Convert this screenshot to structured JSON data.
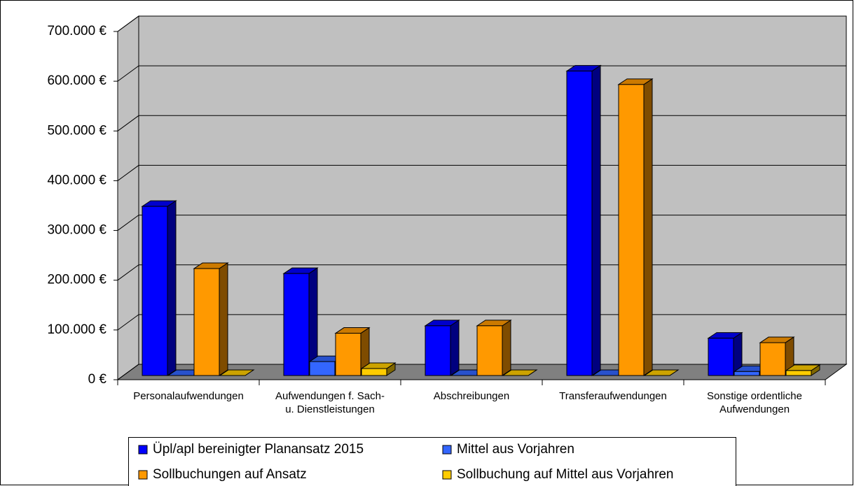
{
  "chart_data": {
    "type": "bar3d",
    "categories": [
      "Personalaufwendungen",
      "Aufwendungen f. Sach-\nu. Dienstleistungen",
      "Abschreibungen",
      "Transferaufwendungen",
      "Sonstige ordentliche\nAufwendungen"
    ],
    "series": [
      {
        "name": "Üpl/apl bereinigter Planansatz 2015",
        "color": "#0000ff",
        "values": [
          340000,
          205000,
          100000,
          612000,
          75000
        ]
      },
      {
        "name": "Mittel aus Vorjahren",
        "color": "#3366ff",
        "values": [
          0,
          28000,
          0,
          0,
          8000
        ]
      },
      {
        "name": "Sollbuchungen auf Ansatz",
        "color": "#ff9900",
        "values": [
          215000,
          85000,
          100000,
          585000,
          66000
        ]
      },
      {
        "name": "Sollbuchung auf Mittel aus Vorjahren",
        "color": "#ffcc00",
        "values": [
          0,
          14000,
          0,
          0,
          10000
        ]
      }
    ],
    "ylim": [
      0,
      700000
    ],
    "yticks": [
      {
        "value": 0,
        "label": "0 €"
      },
      {
        "value": 100000,
        "label": "100.000 €"
      },
      {
        "value": 200000,
        "label": "200.000 €"
      },
      {
        "value": 300000,
        "label": "300.000 €"
      },
      {
        "value": 400000,
        "label": "400.000 €"
      },
      {
        "value": 500000,
        "label": "500.000 €"
      },
      {
        "value": 600000,
        "label": "600.000 €"
      },
      {
        "value": 700000,
        "label": "700.000 €"
      }
    ],
    "grid": true,
    "legend": "bottom"
  }
}
